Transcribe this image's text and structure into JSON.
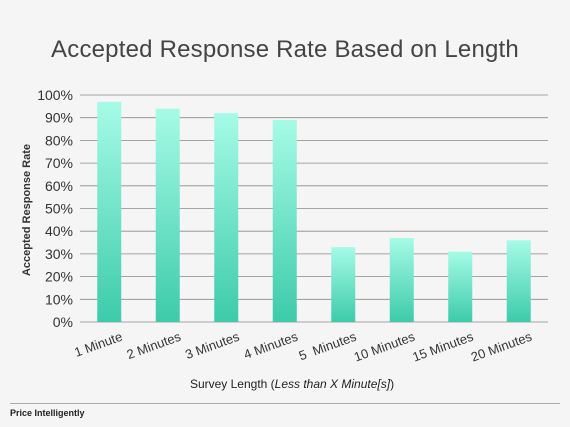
{
  "footer": {
    "brand": "Price Intelligently"
  },
  "colors": {
    "bar_top": "#a6fbe6",
    "bar_bottom": "#3dcbaa",
    "grid": "#8a8a8a",
    "text": "#333333"
  },
  "chart_data": {
    "type": "bar",
    "title": "Accepted Response Rate Based on Length",
    "ylabel": "Accepted Response Rate",
    "xlabel_prefix": "Survey Length (",
    "xlabel_italic": "Less than X Minute[s]",
    "xlabel_suffix": ")",
    "categories": [
      "1 Minute",
      "2 Minutes",
      "3 Minutes",
      "4 Minutes",
      "5  Minutes",
      "10 Minutes",
      "15 Minutes",
      "20 Minutes"
    ],
    "values": [
      97,
      94,
      92,
      89,
      33,
      37,
      31,
      36
    ],
    "ylim": [
      0,
      100
    ],
    "yticks": [
      "0%",
      "10%",
      "20%",
      "30%",
      "40%",
      "50%",
      "60%",
      "70%",
      "80%",
      "90%",
      "100%"
    ],
    "grid": true
  }
}
